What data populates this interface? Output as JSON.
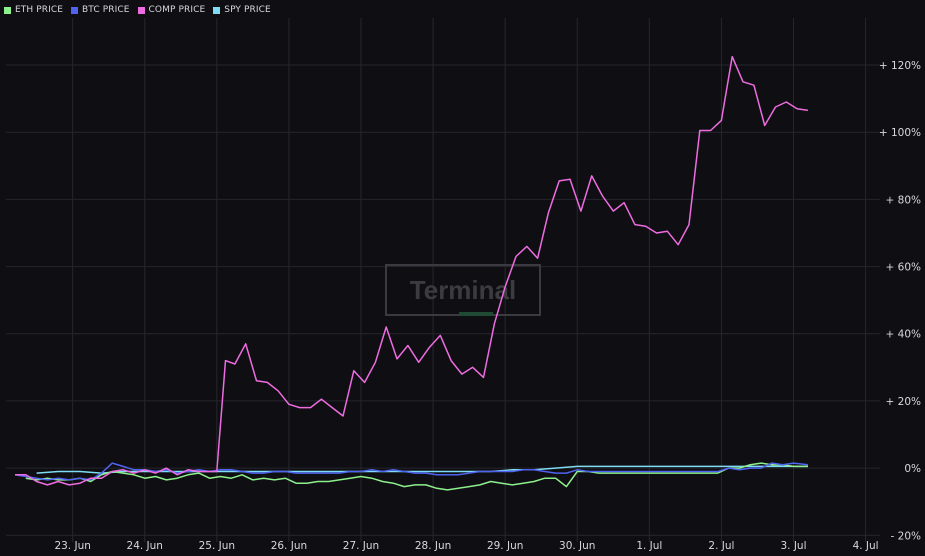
{
  "legend": [
    {
      "label": "ETH PRICE",
      "color": "#8ef08c"
    },
    {
      "label": "BTC PRICE",
      "color": "#4f63f0"
    },
    {
      "label": "COMP PRICE",
      "color": "#ee6ce0"
    },
    {
      "label": "SPY PRICE",
      "color": "#7fdcf4"
    }
  ],
  "watermark": "Terminal",
  "colors": {
    "background": "#0e0e13",
    "grid": "#26262d",
    "eth": "#8ef08c",
    "btc": "#4f63f0",
    "comp": "#ee6ce0",
    "spy": "#7fdcf4"
  },
  "chart_data": {
    "type": "line",
    "x_ticks": [
      {
        "label": "23. Jun",
        "x": 1
      },
      {
        "label": "24. Jun",
        "x": 2
      },
      {
        "label": "25. Jun",
        "x": 3
      },
      {
        "label": "26. Jun",
        "x": 4
      },
      {
        "label": "27. Jun",
        "x": 5
      },
      {
        "label": "28. Jun",
        "x": 6
      },
      {
        "label": "29. Jun",
        "x": 7
      },
      {
        "label": "30. Jun",
        "x": 8
      },
      {
        "label": "1. Jul",
        "x": 9
      },
      {
        "label": "2. Jul",
        "x": 10
      },
      {
        "label": "3. Jul",
        "x": 11
      },
      {
        "label": "4. Jul",
        "x": 12
      }
    ],
    "y_ticks": [
      {
        "label": "+ 120%",
        "value": 120
      },
      {
        "label": "+ 100%",
        "value": 100
      },
      {
        "label": "+ 80%",
        "value": 80
      },
      {
        "label": "+ 60%",
        "value": 60
      },
      {
        "label": "+ 40%",
        "value": 40
      },
      {
        "label": "+ 20%",
        "value": 20
      },
      {
        "label": "0%",
        "value": 0
      },
      {
        "label": "- 20%",
        "value": -20
      }
    ],
    "xlim": [
      0.2,
      12.2
    ],
    "ylim": [
      -22,
      134
    ],
    "grid": true,
    "legend_position": "top-left",
    "series": [
      {
        "name": "COMP PRICE",
        "color": "#ee6ce0",
        "points": [
          [
            0.2,
            -2
          ],
          [
            0.35,
            -2
          ],
          [
            0.5,
            -4
          ],
          [
            0.65,
            -5
          ],
          [
            0.8,
            -4
          ],
          [
            0.95,
            -5
          ],
          [
            1.1,
            -4.5
          ],
          [
            1.25,
            -3
          ],
          [
            1.4,
            -3
          ],
          [
            1.55,
            -1
          ],
          [
            1.7,
            -0.5
          ],
          [
            1.85,
            -1.5
          ],
          [
            2.0,
            -0.5
          ],
          [
            2.15,
            -1.5
          ],
          [
            2.3,
            0
          ],
          [
            2.45,
            -2
          ],
          [
            2.6,
            -0.5
          ],
          [
            2.75,
            -1
          ],
          [
            2.9,
            -1
          ],
          [
            3.0,
            -1
          ],
          [
            3.12,
            32
          ],
          [
            3.25,
            31
          ],
          [
            3.4,
            37
          ],
          [
            3.55,
            26
          ],
          [
            3.7,
            25.5
          ],
          [
            3.85,
            23
          ],
          [
            4.0,
            19
          ],
          [
            4.15,
            18
          ],
          [
            4.3,
            18
          ],
          [
            4.45,
            20.5
          ],
          [
            4.6,
            18
          ],
          [
            4.75,
            15.5
          ],
          [
            4.9,
            29
          ],
          [
            5.05,
            25.5
          ],
          [
            5.2,
            31.5
          ],
          [
            5.35,
            42
          ],
          [
            5.5,
            32.5
          ],
          [
            5.65,
            36.5
          ],
          [
            5.8,
            31.5
          ],
          [
            5.95,
            36
          ],
          [
            6.1,
            39.5
          ],
          [
            6.25,
            32
          ],
          [
            6.4,
            28
          ],
          [
            6.55,
            30
          ],
          [
            6.7,
            27
          ],
          [
            6.85,
            43
          ],
          [
            7.0,
            54
          ],
          [
            7.15,
            63
          ],
          [
            7.3,
            66
          ],
          [
            7.45,
            62.5
          ],
          [
            7.6,
            76
          ],
          [
            7.75,
            85.5
          ],
          [
            7.9,
            86
          ],
          [
            8.05,
            76.5
          ],
          [
            8.2,
            87
          ],
          [
            8.35,
            81
          ],
          [
            8.5,
            76.5
          ],
          [
            8.65,
            79
          ],
          [
            8.8,
            72.5
          ],
          [
            8.95,
            72
          ],
          [
            9.1,
            70
          ],
          [
            9.25,
            70.5
          ],
          [
            9.4,
            66.5
          ],
          [
            9.55,
            72.5
          ],
          [
            9.7,
            100.5
          ],
          [
            9.85,
            100.5
          ],
          [
            10.0,
            103.5
          ],
          [
            10.15,
            122.5
          ],
          [
            10.3,
            115
          ],
          [
            10.45,
            114
          ],
          [
            10.6,
            102
          ],
          [
            10.75,
            107.5
          ],
          [
            10.9,
            109
          ],
          [
            11.05,
            107
          ],
          [
            11.2,
            106.5
          ]
        ]
      },
      {
        "name": "ETH PRICE",
        "color": "#8ef08c",
        "points": [
          [
            0.35,
            -3
          ],
          [
            0.5,
            -3.5
          ],
          [
            0.65,
            -3
          ],
          [
            0.8,
            -3.5
          ],
          [
            0.95,
            -3.5
          ],
          [
            1.1,
            -3
          ],
          [
            1.25,
            -4
          ],
          [
            1.4,
            -2
          ],
          [
            1.55,
            -1
          ],
          [
            1.7,
            -1.5
          ],
          [
            1.85,
            -2
          ],
          [
            2.0,
            -3
          ],
          [
            2.15,
            -2.5
          ],
          [
            2.3,
            -3.5
          ],
          [
            2.45,
            -3
          ],
          [
            2.6,
            -2
          ],
          [
            2.75,
            -1.5
          ],
          [
            2.9,
            -3
          ],
          [
            3.05,
            -2.5
          ],
          [
            3.2,
            -3
          ],
          [
            3.35,
            -2
          ],
          [
            3.5,
            -3.5
          ],
          [
            3.65,
            -3
          ],
          [
            3.8,
            -3.5
          ],
          [
            3.95,
            -3
          ],
          [
            4.1,
            -4.5
          ],
          [
            4.25,
            -4.5
          ],
          [
            4.4,
            -4
          ],
          [
            4.55,
            -4
          ],
          [
            4.7,
            -3.5
          ],
          [
            4.85,
            -3
          ],
          [
            5.0,
            -2.5
          ],
          [
            5.15,
            -3
          ],
          [
            5.3,
            -4
          ],
          [
            5.45,
            -4.5
          ],
          [
            5.6,
            -5.5
          ],
          [
            5.75,
            -5
          ],
          [
            5.9,
            -5
          ],
          [
            6.05,
            -6
          ],
          [
            6.2,
            -6.5
          ],
          [
            6.35,
            -6
          ],
          [
            6.5,
            -5.5
          ],
          [
            6.65,
            -5
          ],
          [
            6.8,
            -4
          ],
          [
            6.95,
            -4.5
          ],
          [
            7.1,
            -5
          ],
          [
            7.25,
            -4.5
          ],
          [
            7.4,
            -4
          ],
          [
            7.55,
            -3
          ],
          [
            7.7,
            -3
          ],
          [
            7.85,
            -5.5
          ],
          [
            8.0,
            -1
          ],
          [
            8.15,
            -1
          ],
          [
            8.3,
            -1.5
          ],
          [
            8.45,
            -1.5
          ],
          [
            8.6,
            -1.5
          ],
          [
            8.75,
            -1.5
          ],
          [
            8.9,
            -1.5
          ],
          [
            9.05,
            -1.5
          ],
          [
            9.2,
            -1.5
          ],
          [
            9.35,
            -1.5
          ],
          [
            9.5,
            -1.5
          ],
          [
            9.65,
            -1.5
          ],
          [
            9.8,
            -1.5
          ],
          [
            9.95,
            -1.5
          ],
          [
            10.1,
            0
          ],
          [
            10.25,
            0
          ],
          [
            10.4,
            1
          ],
          [
            10.55,
            1.5
          ],
          [
            10.7,
            1
          ],
          [
            10.85,
            1
          ],
          [
            11.0,
            0.5
          ],
          [
            11.2,
            0.5
          ]
        ]
      },
      {
        "name": "BTC PRICE",
        "color": "#4f63f0",
        "points": [
          [
            0.2,
            -2
          ],
          [
            0.35,
            -2.5
          ],
          [
            0.5,
            -3
          ],
          [
            0.65,
            -3.5
          ],
          [
            0.8,
            -3
          ],
          [
            0.95,
            -3.5
          ],
          [
            1.1,
            -3
          ],
          [
            1.25,
            -3.5
          ],
          [
            1.4,
            -1.5
          ],
          [
            1.55,
            1.5
          ],
          [
            1.7,
            0.5
          ],
          [
            1.85,
            -0.5
          ],
          [
            2.0,
            -0.5
          ],
          [
            2.15,
            -1
          ],
          [
            2.3,
            -0.5
          ],
          [
            2.45,
            -1.5
          ],
          [
            2.6,
            -1
          ],
          [
            2.75,
            -0.5
          ],
          [
            2.9,
            -1
          ],
          [
            3.05,
            -0.5
          ],
          [
            3.2,
            -0.5
          ],
          [
            3.35,
            -1
          ],
          [
            3.5,
            -1.5
          ],
          [
            3.65,
            -1.5
          ],
          [
            3.8,
            -1
          ],
          [
            3.95,
            -1
          ],
          [
            4.1,
            -1.5
          ],
          [
            4.25,
            -1.5
          ],
          [
            4.4,
            -1.5
          ],
          [
            4.55,
            -1.5
          ],
          [
            4.7,
            -1.5
          ],
          [
            4.85,
            -1
          ],
          [
            5.0,
            -1
          ],
          [
            5.15,
            -0.5
          ],
          [
            5.3,
            -1
          ],
          [
            5.45,
            -0.5
          ],
          [
            5.6,
            -1
          ],
          [
            5.75,
            -1.5
          ],
          [
            5.9,
            -1.5
          ],
          [
            6.05,
            -2
          ],
          [
            6.2,
            -2
          ],
          [
            6.35,
            -2
          ],
          [
            6.5,
            -1.5
          ],
          [
            6.65,
            -1
          ],
          [
            6.8,
            -1
          ],
          [
            6.95,
            -1
          ],
          [
            7.1,
            -1
          ],
          [
            7.25,
            -0.5
          ],
          [
            7.4,
            -0.5
          ],
          [
            7.55,
            -1
          ],
          [
            7.7,
            -1.5
          ],
          [
            7.85,
            -1.5
          ],
          [
            8.0,
            -0.5
          ],
          [
            8.15,
            -1
          ],
          [
            8.3,
            -1
          ],
          [
            8.45,
            -1
          ],
          [
            8.6,
            -1
          ],
          [
            8.75,
            -1
          ],
          [
            8.9,
            -1
          ],
          [
            9.05,
            -1
          ],
          [
            9.2,
            -1
          ],
          [
            9.35,
            -1
          ],
          [
            9.5,
            -1
          ],
          [
            9.65,
            -1
          ],
          [
            9.8,
            -1
          ],
          [
            9.95,
            -1
          ],
          [
            10.1,
            0
          ],
          [
            10.25,
            -0.5
          ],
          [
            10.4,
            0
          ],
          [
            10.55,
            0
          ],
          [
            10.7,
            1.5
          ],
          [
            10.85,
            1
          ],
          [
            11.0,
            1.5
          ],
          [
            11.2,
            1
          ]
        ]
      },
      {
        "name": "SPY PRICE",
        "color": "#7fdcf4",
        "points": [
          [
            0.5,
            -1.5
          ],
          [
            0.8,
            -1
          ],
          [
            1.1,
            -1
          ],
          [
            1.4,
            -1.5
          ],
          [
            1.7,
            -1
          ],
          [
            2.0,
            -1
          ],
          [
            2.3,
            -1
          ],
          [
            2.6,
            -1
          ],
          [
            2.9,
            -1
          ],
          [
            3.2,
            -1
          ],
          [
            3.5,
            -1
          ],
          [
            3.8,
            -1
          ],
          [
            4.1,
            -1
          ],
          [
            4.4,
            -1
          ],
          [
            4.7,
            -1
          ],
          [
            5.0,
            -1
          ],
          [
            5.3,
            -1
          ],
          [
            5.6,
            -1
          ],
          [
            5.9,
            -1
          ],
          [
            6.2,
            -1
          ],
          [
            6.5,
            -1
          ],
          [
            6.8,
            -1
          ],
          [
            7.1,
            -0.5
          ],
          [
            7.4,
            -0.5
          ],
          [
            7.7,
            0
          ],
          [
            8.0,
            0.5
          ],
          [
            8.3,
            0.5
          ],
          [
            8.6,
            0.5
          ],
          [
            8.9,
            0.5
          ],
          [
            9.2,
            0.5
          ],
          [
            9.5,
            0.5
          ],
          [
            9.8,
            0.5
          ],
          [
            10.1,
            0.5
          ],
          [
            10.4,
            0.5
          ],
          [
            10.7,
            0.5
          ],
          [
            11.0,
            0.5
          ],
          [
            11.2,
            0.5
          ]
        ]
      }
    ]
  }
}
